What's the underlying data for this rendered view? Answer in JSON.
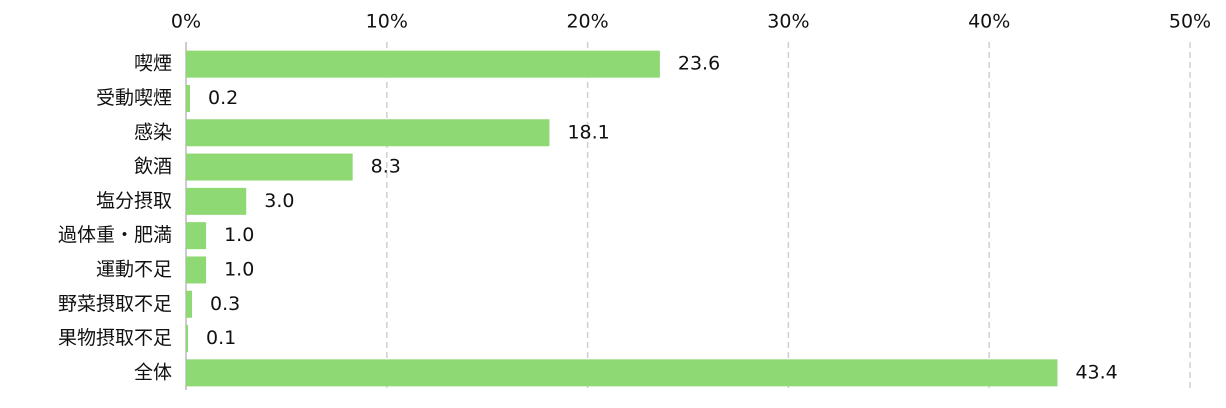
{
  "chart_data": {
    "type": "bar",
    "orientation": "horizontal",
    "categories": [
      "喫煙",
      "受動喫煙",
      "感染",
      "飲酒",
      "塩分摂取",
      "過体重・肥満",
      "運動不足",
      "野菜摂取不足",
      "果物摂取不足",
      "全体"
    ],
    "values": [
      23.6,
      0.2,
      18.1,
      8.3,
      3.0,
      1.0,
      1.0,
      0.3,
      0.1,
      43.4
    ],
    "value_labels": [
      "23.6",
      "0.2",
      "18.1",
      "8.3",
      "3.0",
      "1.0",
      "1.0",
      "0.3",
      "0.1",
      "43.4"
    ],
    "color": "#8fd974",
    "xlim": [
      0,
      50
    ],
    "xticks": [
      {
        "value": 0,
        "label": "0%"
      },
      {
        "value": 10,
        "label": "10%"
      },
      {
        "value": 20,
        "label": "20%"
      },
      {
        "value": 30,
        "label": "30%"
      },
      {
        "value": 40,
        "label": "40%"
      },
      {
        "value": 50,
        "label": "50%"
      }
    ],
    "grid": true
  }
}
